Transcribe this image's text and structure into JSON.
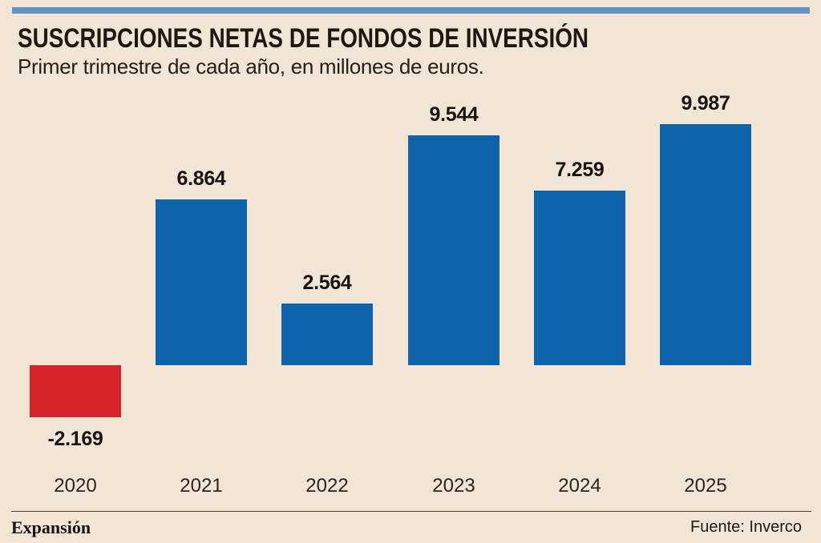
{
  "header": {
    "title": "SUSCRIPCIONES NETAS DE FONDOS DE INVERSIÓN",
    "subtitle": "Primer trimestre de cada año, en millones de euros."
  },
  "chart_data": {
    "type": "bar",
    "title": "SUSCRIPCIONES NETAS DE FONDOS DE INVERSIÓN",
    "subtitle": "Primer trimestre de cada año, en millones de euros.",
    "categories": [
      "2020",
      "2021",
      "2022",
      "2023",
      "2024",
      "2025"
    ],
    "values": [
      -2169,
      6864,
      2564,
      9544,
      7259,
      9987
    ],
    "value_labels": [
      "-2.169",
      "6.864",
      "2.564",
      "9.544",
      "7.259",
      "9.987"
    ],
    "unit": "millones de euros",
    "xlabel": "",
    "ylabel": "",
    "ylim": [
      -2600,
      10600
    ],
    "grid": false,
    "legend": "none",
    "colors": {
      "positive": "#0e63a9",
      "negative": "#d8232a"
    }
  },
  "colors": {
    "background": "#f3e5d6",
    "top_stripe": "#6292c3"
  },
  "footer": {
    "brand": "Expansión",
    "source": "Fuente: Inverco"
  }
}
